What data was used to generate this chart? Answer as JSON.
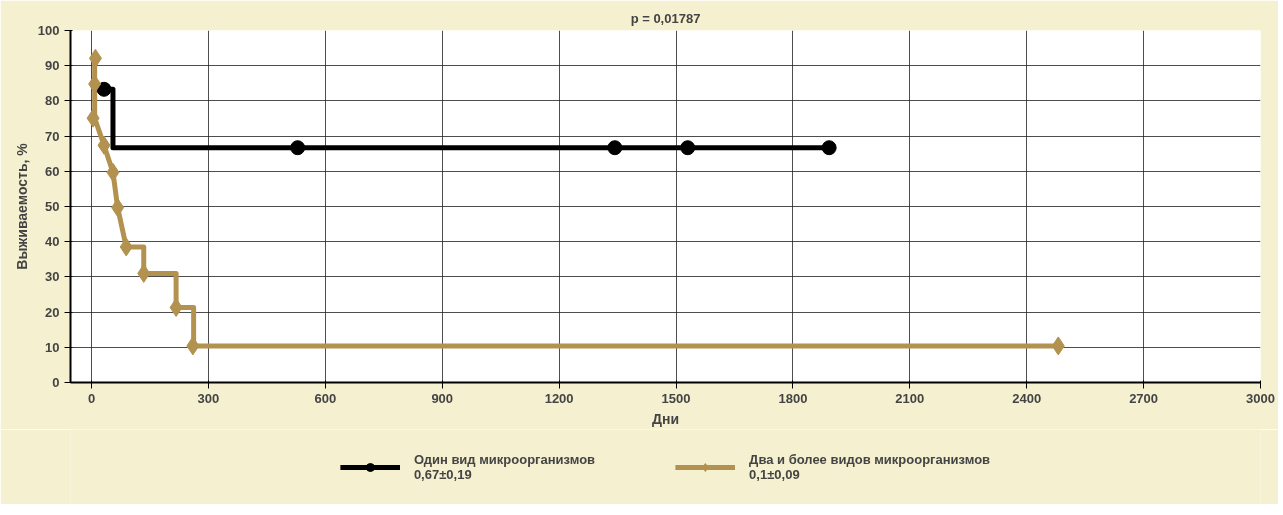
{
  "chart_data": {
    "type": "line",
    "title": "p = 0,01787",
    "xlabel": "Дни",
    "ylabel": "Выживаемость, %",
    "xlim": [
      -54,
      3000
    ],
    "ylim": [
      0,
      100
    ],
    "xticks": [
      0,
      300,
      600,
      900,
      1200,
      1500,
      1800,
      2100,
      2400,
      2700,
      3000
    ],
    "yticks": [
      0,
      10,
      20,
      30,
      40,
      50,
      60,
      70,
      80,
      90,
      100
    ],
    "grid": true,
    "legend": "bottom",
    "line_style": "solid",
    "marker": "none",
    "series": [
      {
        "name": "Один вид микроорганизмов\n0,67±0,19",
        "color": "#000000",
        "x": [
          32,
          55,
          55,
          1893
        ],
        "values": [
          83.3,
          83.3,
          66.7,
          66.7
        ]
      },
      {
        "name": "Два и более видов микроорганизмов\n0,1±0,09",
        "color": "#b39250",
        "x": [
          8,
          8,
          32,
          55,
          67,
          89,
          134,
          134,
          217,
          217,
          262,
          262,
          2481
        ],
        "values": [
          92.1,
          75.1,
          67.4,
          59.7,
          49.7,
          38.5,
          38.5,
          31,
          31,
          21.3,
          21.3,
          10.4,
          10.4
        ]
      },
      {
        "type": "scatter",
        "marker": "circle",
        "color": "#000000",
        "x": [
          32,
          529,
          1343,
          1530,
          1893
        ],
        "values": [
          83.3,
          66.7,
          66.7,
          66.7,
          66.7
        ]
      },
      {
        "type": "scatter",
        "marker": "diamond",
        "color": "#b39250",
        "x": [
          10,
          8,
          4,
          32,
          55,
          67,
          89,
          134,
          217,
          260,
          2481
        ],
        "values": [
          92.1,
          84.8,
          75.1,
          67.4,
          59.7,
          49.7,
          38.5,
          31,
          21.3,
          10.4,
          10.4
        ]
      }
    ]
  }
}
